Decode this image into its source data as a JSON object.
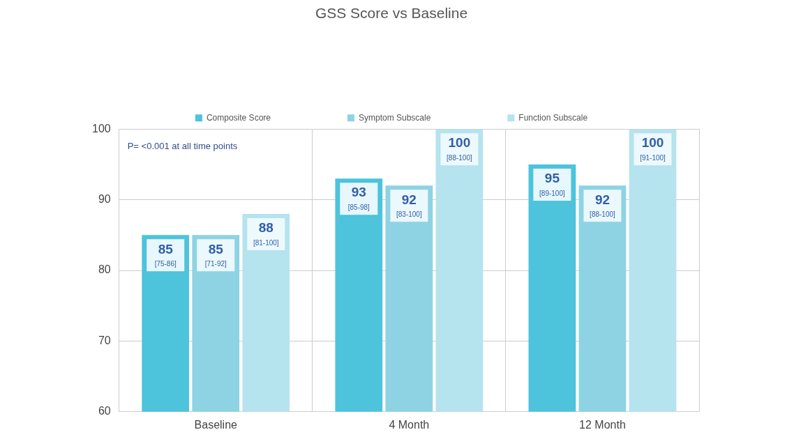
{
  "chart_data": {
    "type": "bar",
    "title": "GSS Score vs Baseline",
    "categories": [
      "Baseline",
      "4 Month",
      "12 Month"
    ],
    "series": [
      {
        "name": "Composite Score",
        "color": "#4dc3dc",
        "values": [
          85,
          93,
          95
        ],
        "value_labels": [
          "85 [75-86]",
          "93 [85-98]",
          "95 [89-100]"
        ]
      },
      {
        "name": "Symptom Subscale",
        "color": "#8dd3e4",
        "values": [
          85,
          92,
          92
        ],
        "value_labels": [
          "85 [71-92]",
          "92 [83-100]",
          "92 [88-100]"
        ]
      },
      {
        "name": "Function Subscale",
        "color": "#b5e3ee",
        "values": [
          88,
          100,
          100
        ],
        "value_labels": [
          "88 [81-100]",
          "100 [88-100]",
          "100 [91-100]"
        ]
      }
    ],
    "ylim": [
      60,
      100
    ],
    "yticks": [
      60,
      70,
      80,
      90,
      100
    ],
    "grid": true,
    "legend": "top",
    "annotations": [
      "P= <0.001 at all time points"
    ]
  }
}
